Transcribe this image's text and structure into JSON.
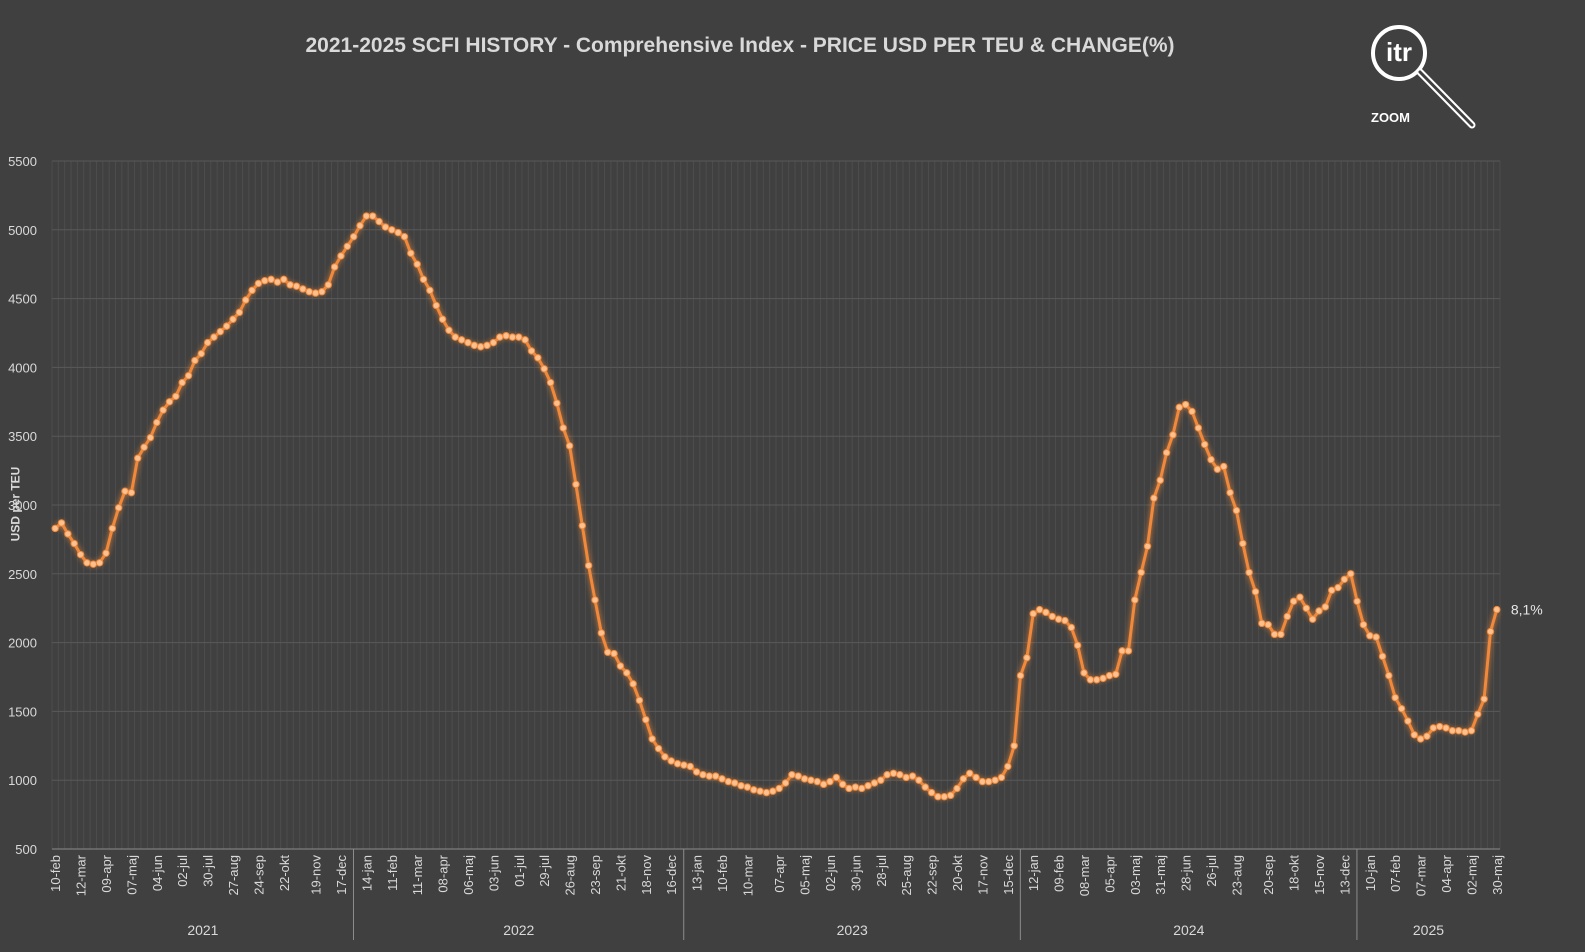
{
  "header": {
    "title": "2021-2025 SCFI HISTORY - Comprehensive Index - PRICE USD PER TEU & CHANGE(%)",
    "logo_text": "itr",
    "logo_caption": "ZOOM"
  },
  "colors": {
    "background": "#404040",
    "line": "#f0893a",
    "marker": "#ffc090",
    "grid": "#595959",
    "text": "#d9d9d9"
  },
  "chart_data": {
    "type": "line",
    "title": "2021-2025 SCFI HISTORY - Comprehensive Index - PRICE USD PER TEU & CHANGE(%)",
    "ylabel": "USD per TEU",
    "ylim": [
      500,
      5500
    ],
    "yticks": [
      500,
      1000,
      1500,
      2000,
      2500,
      3000,
      3500,
      4000,
      4500,
      5000,
      5500
    ],
    "grid": true,
    "x_tick_labels": [
      "10-feb",
      "12-mar",
      "09-apr",
      "07-maj",
      "04-jun",
      "02-jul",
      "30-jul",
      "27-aug",
      "24-sep",
      "22-okt",
      "19-nov",
      "17-dec",
      "14-jan",
      "11-feb",
      "11-mar",
      "08-apr",
      "06-maj",
      "03-jun",
      "01-jul",
      "29-jul",
      "26-aug",
      "23-sep",
      "21-okt",
      "18-nov",
      "16-dec",
      "13-jan",
      "10-feb",
      "10-mar",
      "07-apr",
      "05-maj",
      "02-jun",
      "30-jun",
      "28-jul",
      "25-aug",
      "22-sep",
      "20-okt",
      "17-nov",
      "15-dec",
      "12-jan",
      "09-feb",
      "08-mar",
      "05-apr",
      "03-maj",
      "31-maj",
      "28-jun",
      "26-jul",
      "23-aug",
      "20-sep",
      "18-okt",
      "15-nov",
      "13-dec",
      "10-jan",
      "07-feb",
      "07-mar",
      "04-apr",
      "02-maj",
      "30-maj"
    ],
    "year_groups": [
      {
        "label": "2021",
        "start": 0,
        "end": 11
      },
      {
        "label": "2022",
        "start": 12,
        "end": 24
      },
      {
        "label": "2023",
        "start": 25,
        "end": 37
      },
      {
        "label": "2024",
        "start": 38,
        "end": 50
      },
      {
        "label": "2025",
        "start": 51,
        "end": 56
      }
    ],
    "series": [
      {
        "values": [
          2830,
          2870,
          2790,
          2720,
          2640,
          2580,
          2570,
          2580,
          2650,
          2830,
          2980,
          3100,
          3090,
          3340,
          3420,
          3490,
          3600,
          3690,
          3750,
          3790,
          3890,
          3940,
          4050,
          4100,
          4180,
          4220,
          4260,
          4300,
          4350,
          4400,
          4490,
          4560,
          4610,
          4630,
          4640,
          4620,
          4640,
          4600,
          4590,
          4570,
          4550,
          4540,
          4550,
          4600,
          4730,
          4810,
          4880,
          4950,
          5030,
          5100,
          5100,
          5060,
          5020,
          5000,
          4980,
          4950,
          4830,
          4750,
          4640,
          4560,
          4450,
          4350,
          4270,
          4220,
          4200,
          4180,
          4160,
          4150,
          4160,
          4180,
          4220,
          4230,
          4220,
          4220,
          4200,
          4120,
          4070,
          3990,
          3890,
          3740,
          3560,
          3430,
          3150,
          2850,
          2560,
          2310,
          2070,
          1930,
          1920,
          1830,
          1780,
          1700,
          1580,
          1440,
          1300,
          1230,
          1170,
          1140,
          1120,
          1110,
          1100,
          1060,
          1040,
          1030,
          1030,
          1010,
          990,
          980,
          960,
          950,
          930,
          920,
          910,
          920,
          940,
          980,
          1040,
          1030,
          1010,
          1000,
          990,
          970,
          990,
          1020,
          970,
          940,
          950,
          940,
          960,
          980,
          1000,
          1040,
          1050,
          1040,
          1020,
          1030,
          1000,
          950,
          910,
          880,
          880,
          890,
          940,
          1010,
          1050,
          1020,
          990,
          990,
          1000,
          1020,
          1100,
          1250,
          1760,
          1890,
          2210,
          2240,
          2220,
          2190,
          2170,
          2160,
          2110,
          1980,
          1780,
          1730,
          1730,
          1740,
          1760,
          1770,
          1940,
          1940,
          2310,
          2510,
          2700,
          3050,
          3180,
          3380,
          3510,
          3710,
          3730,
          3680,
          3560,
          3440,
          3330,
          3260,
          3280,
          3090,
          2960,
          2720,
          2510,
          2370,
          2140,
          2130,
          2060,
          2060,
          2190,
          2300,
          2330,
          2250,
          2170,
          2230,
          2260,
          2380,
          2400,
          2460,
          2500,
          2300,
          2130,
          2050,
          2040,
          1900,
          1760,
          1600,
          1520,
          1430,
          1330,
          1300,
          1320,
          1380,
          1390,
          1380,
          1360,
          1360,
          1350,
          1360,
          1480,
          1590,
          2080,
          2240
        ]
      }
    ],
    "annotations": [
      {
        "text": "8,1%",
        "at": "last-point"
      }
    ]
  }
}
